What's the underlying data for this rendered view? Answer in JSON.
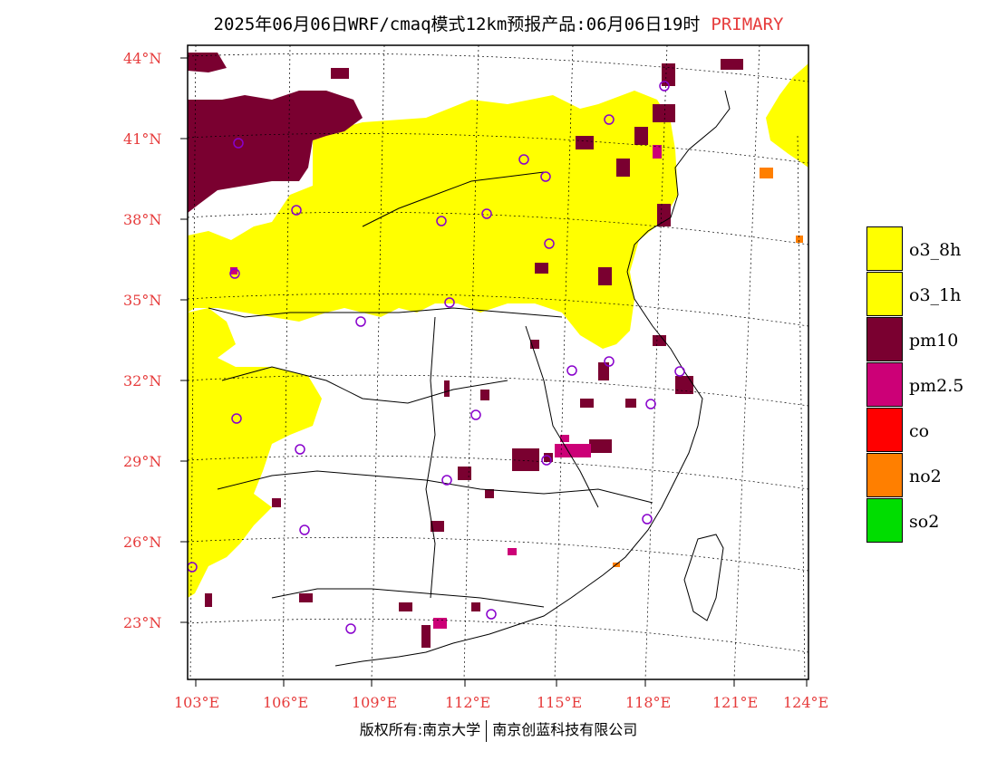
{
  "header": {
    "title": "2025年06月06日WRF/cmaq模式12km预报产品:06月06日19时",
    "mode_label": "PRIMARY"
  },
  "axes": {
    "lat_labels": [
      "44°N",
      "41°N",
      "38°N",
      "35°N",
      "32°N",
      "29°N",
      "26°N",
      "23°N"
    ],
    "lon_labels": [
      "103°E",
      "106°E",
      "109°E",
      "112°E",
      "115°E",
      "118°E",
      "121°E",
      "124°E"
    ]
  },
  "legend": {
    "items": [
      {
        "label": "o3_8h",
        "color": "#ffff00"
      },
      {
        "label": "o3_1h",
        "color": "#ffff00"
      },
      {
        "label": "pm10",
        "color": "#7a0030"
      },
      {
        "label": "pm2.5",
        "color": "#cc0077"
      },
      {
        "label": "co",
        "color": "#ff0000"
      },
      {
        "label": "no2",
        "color": "#ff7f00"
      },
      {
        "label": "so2",
        "color": "#00dd00"
      }
    ]
  },
  "footer": {
    "left": "版权所有:南京大学",
    "right": "南京创蓝科技有限公司"
  },
  "colors": {
    "label_red": "#e63b3b",
    "o3": "#ffff00",
    "pm10": "#7a0030",
    "pm25": "#cc0077",
    "no2": "#ff7f00",
    "station": "#8800cc"
  }
}
